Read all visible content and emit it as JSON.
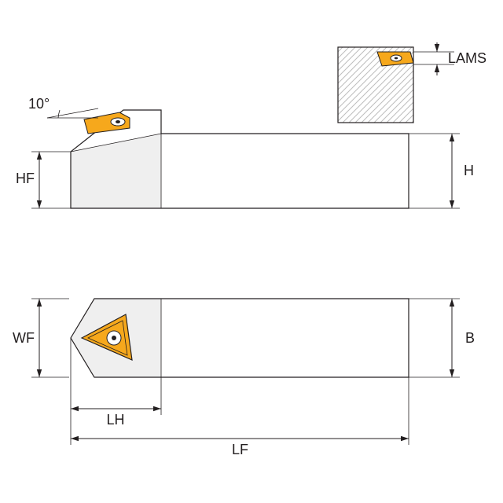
{
  "diagram": {
    "type": "engineering-dimension-drawing",
    "background_color": "#ffffff",
    "stroke_color": "#231f20",
    "insert_fill": "#f6a81c",
    "insert_stroke": "#231f20",
    "shade_fill": "#efefef",
    "label_font_size": 18,
    "label_color": "#231f20",
    "labels": {
      "angle": "10°",
      "HF": "HF",
      "H": "H",
      "LAMS": "LAMS",
      "WF": "WF",
      "B": "B",
      "LH": "LH",
      "LF": "LF"
    },
    "arrow": {
      "len": 10,
      "half": 3.2
    }
  }
}
